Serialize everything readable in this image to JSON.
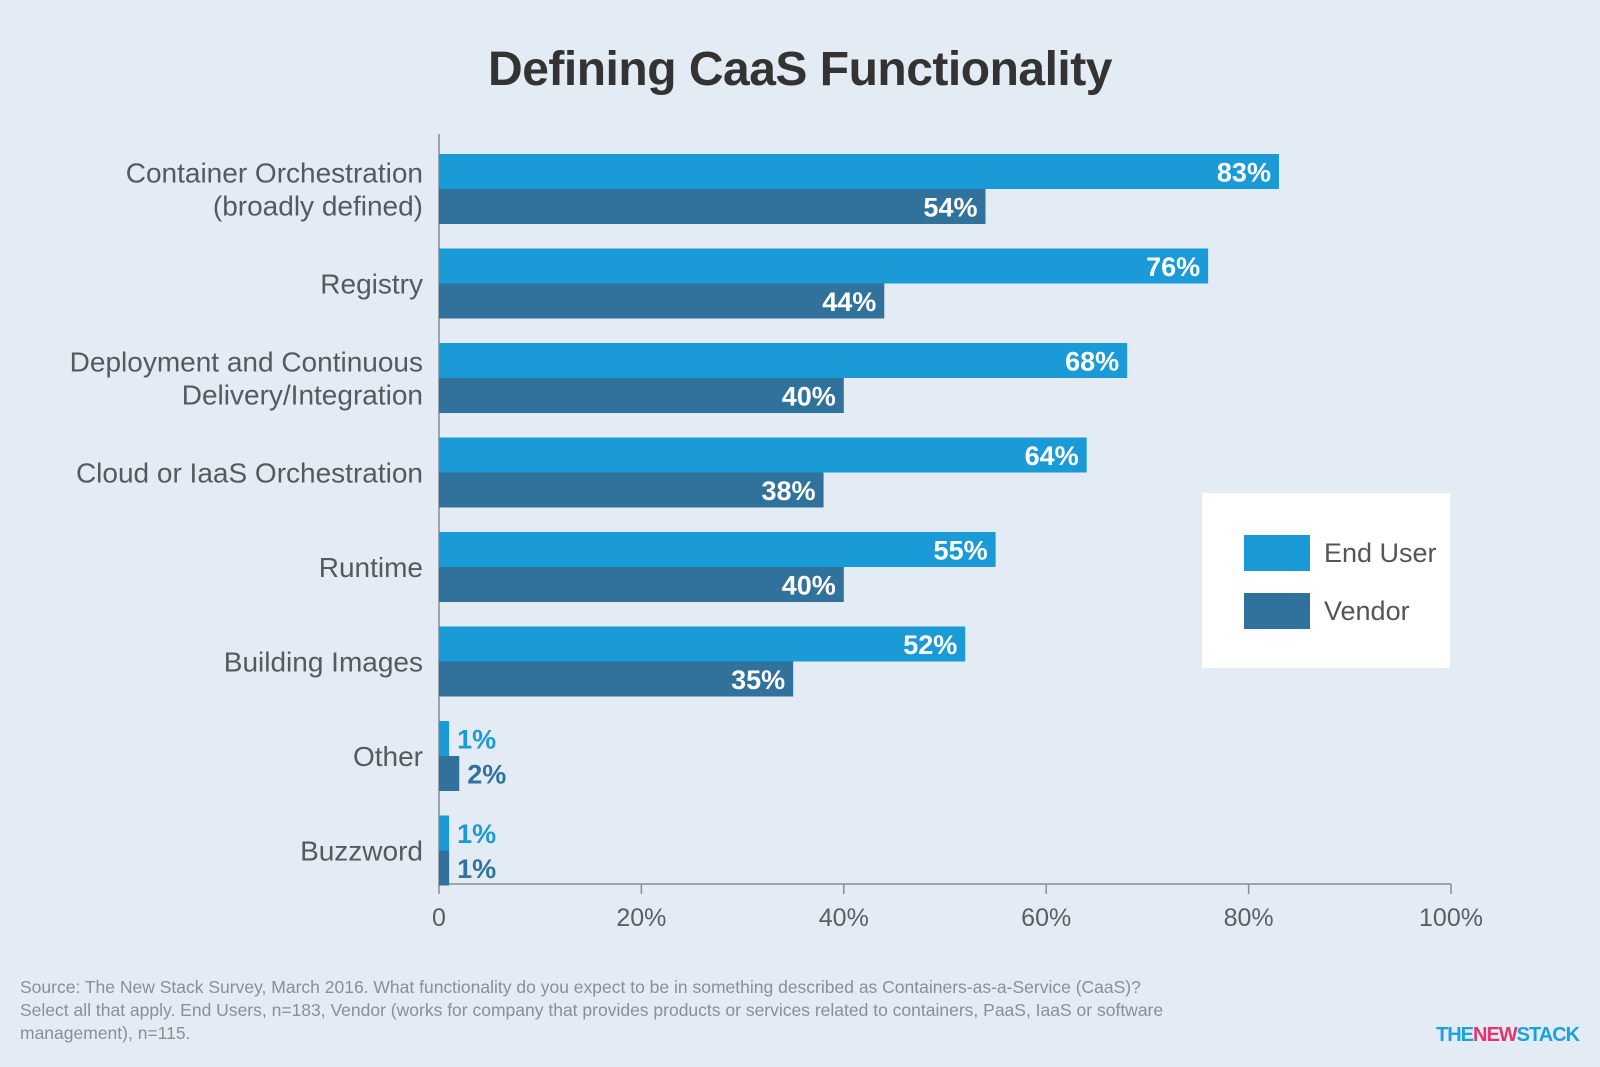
{
  "chart_data": {
    "type": "bar",
    "orientation": "horizontal",
    "title": "Defining CaaS Functionality",
    "categories": [
      [
        "Container Orchestration",
        "(broadly defined)"
      ],
      [
        "Registry"
      ],
      [
        "Deployment and Continuous",
        "Delivery/Integration"
      ],
      [
        "Cloud or IaaS Orchestration"
      ],
      [
        "Runtime"
      ],
      [
        "Building Images"
      ],
      [
        "Other"
      ],
      [
        "Buzzword"
      ]
    ],
    "series": [
      {
        "name": "End User",
        "values": [
          83,
          76,
          68,
          64,
          55,
          52,
          1,
          1
        ],
        "labels": [
          "83%",
          "76%",
          "68%",
          "64%",
          "55%",
          "52%",
          "1%",
          "1%"
        ],
        "color": "#1a9bd7"
      },
      {
        "name": "Vendor",
        "values": [
          54,
          44,
          40,
          38,
          40,
          35,
          2,
          1
        ],
        "labels": [
          "54%",
          "44%",
          "40%",
          "38%",
          "40%",
          "35%",
          "2%",
          "1%"
        ],
        "color": "#31729c"
      }
    ],
    "xlim": [
      0,
      100
    ],
    "xticks": [
      0,
      20,
      40,
      60,
      80,
      100
    ],
    "xtick_labels": [
      "0",
      "20%",
      "40%",
      "60%",
      "80%",
      "100%"
    ],
    "grid": false,
    "legend_position": "right"
  },
  "source_note": "Source: The New Stack Survey, March 2016. What functionality do you expect to be in something described as Containers-as-a-Service (CaaS)? Select all that apply. End Users, n=183, Vendor (works for company that provides products or services related to containers, PaaS, IaaS or software management), n=115.",
  "logo": {
    "part1": "THE",
    "part2": "NEW",
    "part3": "STACK"
  }
}
